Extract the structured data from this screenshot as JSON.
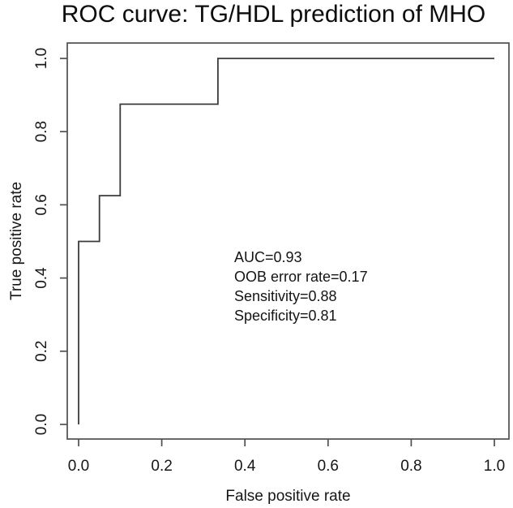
{
  "chart_data": {
    "type": "line",
    "subtype": "roc-step-curve",
    "title": "ROC curve: TG/HDL prediction of MHO",
    "xlabel": "False positive rate",
    "ylabel": "True positive rate",
    "xlim": [
      0.0,
      1.0
    ],
    "ylim": [
      0.0,
      1.0
    ],
    "x_tick_labels": [
      "0.0",
      "0.2",
      "0.4",
      "0.6",
      "0.8",
      "1.0"
    ],
    "y_tick_labels": [
      "0.0",
      "0.2",
      "0.4",
      "0.6",
      "0.8",
      "1.0"
    ],
    "grid": false,
    "legend": null,
    "line_color": "#3b3b3b",
    "axis_color": "#4f4f4f",
    "text_color": "#161616",
    "series": [
      {
        "name": "ROC curve",
        "points": [
          [
            0.0,
            0.0
          ],
          [
            0.0,
            0.5
          ],
          [
            0.05,
            0.5
          ],
          [
            0.05,
            0.625
          ],
          [
            0.1,
            0.625
          ],
          [
            0.1,
            0.875
          ],
          [
            0.335,
            0.875
          ],
          [
            0.335,
            1.0
          ],
          [
            1.0,
            1.0
          ]
        ]
      }
    ],
    "annotations": [
      "AUC=0.93",
      "OOB error rate=0.17",
      "Sensitivity=0.88",
      "Specificity=0.81"
    ],
    "stats": {
      "auc": 0.93,
      "oob_error_rate": 0.17,
      "sensitivity": 0.88,
      "specificity": 0.81
    }
  }
}
